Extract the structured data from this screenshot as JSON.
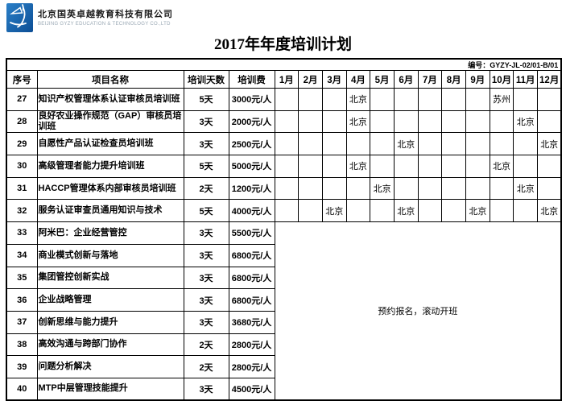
{
  "header": {
    "company_name_cn": "北京国英卓越教育科技有限公司",
    "company_name_en": "BEIJING GYZY EDUCATION & TECHNOLOGY CO.,LTD",
    "title": "2017年年度培训计划",
    "doc_number_label": "编号：",
    "doc_number_value": "GYZY-JL-02/01-B/01"
  },
  "colors": {
    "logo_blue_light": "#2b80c8",
    "logo_blue_dark": "#0c4e95",
    "company_en_gray": "#9aa8b4",
    "border_black": "#000000"
  },
  "icons": {
    "logo": "gyzy-calligraphy-figure-on-blue-square"
  },
  "table": {
    "columns": [
      "序号",
      "项目名称",
      "培训天数",
      "培训费"
    ],
    "month_headers": [
      "1月",
      "2月",
      "3月",
      "4月",
      "5月",
      "6月",
      "7月",
      "8月",
      "9月",
      "10月",
      "11月",
      "12月"
    ],
    "merged_note": "预约报名，滚动开班",
    "rows": [
      {
        "no": "27",
        "name": "知识产权管理体系认证审核员培训班",
        "days": "5天",
        "fee": "3000元/人",
        "months": [
          "",
          "",
          "",
          "北京",
          "",
          "",
          "",
          "",
          "",
          "苏州",
          "",
          ""
        ]
      },
      {
        "no": "28",
        "name": "良好农业操作规范（GAP）审核员培训班",
        "days": "3天",
        "fee": "2000元/人",
        "months": [
          "",
          "",
          "",
          "北京",
          "",
          "",
          "",
          "",
          "",
          "",
          "北京",
          ""
        ]
      },
      {
        "no": "29",
        "name": "自愿性产品认证检查员培训班",
        "days": "3天",
        "fee": "2500元/人",
        "months": [
          "",
          "",
          "",
          "",
          "",
          "北京",
          "",
          "",
          "",
          "",
          "",
          "北京"
        ]
      },
      {
        "no": "30",
        "name": "高级管理者能力提升培训班",
        "days": "5天",
        "fee": "5000元/人",
        "months": [
          "",
          "",
          "",
          "北京",
          "",
          "",
          "",
          "",
          "",
          "北京",
          "",
          ""
        ]
      },
      {
        "no": "31",
        "name": "HACCP管理体系内部审核员培训班",
        "days": "2天",
        "fee": "1200元/人",
        "months": [
          "",
          "",
          "",
          "",
          "北京",
          "",
          "",
          "",
          "",
          "",
          "北京",
          ""
        ]
      },
      {
        "no": "32",
        "name": "服务认证审查员通用知识与技术",
        "days": "5天",
        "fee": "4000元/人",
        "months": [
          "",
          "",
          "北京",
          "",
          "",
          "北京",
          "",
          "",
          "北京",
          "",
          "",
          "北京"
        ]
      },
      {
        "no": "33",
        "name": "阿米巴：企业经营管控",
        "days": "3天",
        "fee": "5500元/人"
      },
      {
        "no": "34",
        "name": "商业模式创新与落地",
        "days": "3天",
        "fee": "6800元/人"
      },
      {
        "no": "35",
        "name": "集团管控创新实战",
        "days": "3天",
        "fee": "6800元/人"
      },
      {
        "no": "36",
        "name": "企业战略管理",
        "days": "3天",
        "fee": "6800元/人"
      },
      {
        "no": "37",
        "name": "创新思维与能力提升",
        "days": "3天",
        "fee": "3680元/人"
      },
      {
        "no": "38",
        "name": "高效沟通与跨部门协作",
        "days": "2天",
        "fee": "2800元/人"
      },
      {
        "no": "39",
        "name": "问题分析解决",
        "days": "2天",
        "fee": "2800元/人"
      },
      {
        "no": "40",
        "name": "MTP中层管理技能提升",
        "days": "3天",
        "fee": "4500元/人"
      }
    ]
  }
}
